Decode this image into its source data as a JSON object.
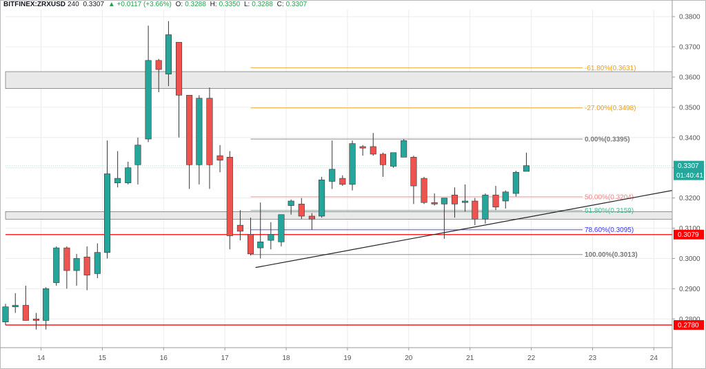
{
  "header": {
    "symbol": "BITFINEX:ZRXUSD",
    "interval": "240",
    "last": "0.3307",
    "change": "▲ +0.0117 (+3.66%)",
    "o_label": "O:",
    "o": "0.3288",
    "h_label": "H:",
    "h": "0.3350",
    "l_label": "L:",
    "l": "0.3288",
    "c_label": "C:",
    "c": "0.3307"
  },
  "colors": {
    "up": "#26a69a",
    "down": "#ef5350",
    "grid": "#ececec",
    "axis": "#555555",
    "resistance": "#ff0000",
    "zone": "#e9e9e9",
    "fib_orange": "#f39c12",
    "fib_gray": "#777777",
    "fib_red": "#f08080",
    "fib_green": "#3db88a",
    "fib_blue": "#3333ff",
    "trend": "#222222",
    "price_tag": "#26a69a"
  },
  "chart_data": {
    "type": "candlestick",
    "title": "BITFINEX:ZRXUSD, 240",
    "ylim": [
      0.2705,
      0.3823
    ],
    "xlim": [
      13.42,
      24.3
    ],
    "x_ticks": [
      14,
      15,
      16,
      17,
      18,
      19,
      20,
      21,
      22,
      23,
      24
    ],
    "x_tick_labels": [
      "14",
      "15",
      "16",
      "17",
      "18",
      "19",
      "20",
      "21",
      "22",
      "23",
      "24"
    ],
    "y_ticks": [
      0.38,
      0.37,
      0.36,
      0.35,
      0.34,
      0.33,
      0.32,
      0.31,
      0.3,
      0.29,
      0.28
    ],
    "y_tick_labels": [
      "0.3800",
      "0.3700",
      "0.3600",
      "0.3500",
      "0.3400",
      "0.3300",
      "0.3200",
      "0.3100",
      "0.3000",
      "0.2900",
      "0.2800"
    ],
    "candles": [
      {
        "t": 13.42,
        "o": 0.279,
        "h": 0.285,
        "l": 0.278,
        "c": 0.284
      },
      {
        "t": 13.58,
        "o": 0.284,
        "h": 0.2885,
        "l": 0.282,
        "c": 0.2845
      },
      {
        "t": 13.75,
        "o": 0.2845,
        "h": 0.291,
        "l": 0.2795,
        "c": 0.2795
      },
      {
        "t": 13.92,
        "o": 0.28,
        "h": 0.282,
        "l": 0.2765,
        "c": 0.2795
      },
      {
        "t": 14.08,
        "o": 0.2795,
        "h": 0.2905,
        "l": 0.2765,
        "c": 0.29
      },
      {
        "t": 14.25,
        "o": 0.292,
        "h": 0.304,
        "l": 0.291,
        "c": 0.3035
      },
      {
        "t": 14.42,
        "o": 0.3035,
        "h": 0.304,
        "l": 0.29,
        "c": 0.296
      },
      {
        "t": 14.58,
        "o": 0.296,
        "h": 0.3015,
        "l": 0.291,
        "c": 0.3
      },
      {
        "t": 14.75,
        "o": 0.3005,
        "h": 0.304,
        "l": 0.2895,
        "c": 0.2945
      },
      {
        "t": 14.92,
        "o": 0.295,
        "h": 0.305,
        "l": 0.2935,
        "c": 0.302
      },
      {
        "t": 15.08,
        "o": 0.302,
        "h": 0.339,
        "l": 0.3,
        "c": 0.328
      },
      {
        "t": 15.25,
        "o": 0.325,
        "h": 0.3355,
        "l": 0.3235,
        "c": 0.3265
      },
      {
        "t": 15.42,
        "o": 0.325,
        "h": 0.332,
        "l": 0.3245,
        "c": 0.33
      },
      {
        "t": 15.58,
        "o": 0.331,
        "h": 0.34,
        "l": 0.3245,
        "c": 0.3375
      },
      {
        "t": 15.75,
        "o": 0.3395,
        "h": 0.377,
        "l": 0.3385,
        "c": 0.3655
      },
      {
        "t": 15.92,
        "o": 0.3655,
        "h": 0.366,
        "l": 0.355,
        "c": 0.3625
      },
      {
        "t": 16.08,
        "o": 0.361,
        "h": 0.3785,
        "l": 0.357,
        "c": 0.374
      },
      {
        "t": 16.25,
        "o": 0.3715,
        "h": 0.3715,
        "l": 0.34,
        "c": 0.354
      },
      {
        "t": 16.42,
        "o": 0.354,
        "h": 0.354,
        "l": 0.323,
        "c": 0.331
      },
      {
        "t": 16.58,
        "o": 0.331,
        "h": 0.354,
        "l": 0.3245,
        "c": 0.353
      },
      {
        "t": 16.75,
        "o": 0.353,
        "h": 0.3565,
        "l": 0.323,
        "c": 0.331
      },
      {
        "t": 16.92,
        "o": 0.334,
        "h": 0.3375,
        "l": 0.3285,
        "c": 0.3325
      },
      {
        "t": 17.08,
        "o": 0.3335,
        "h": 0.3355,
        "l": 0.303,
        "c": 0.3075
      },
      {
        "t": 17.25,
        "o": 0.311,
        "h": 0.316,
        "l": 0.306,
        "c": 0.309
      },
      {
        "t": 17.42,
        "o": 0.308,
        "h": 0.3135,
        "l": 0.301,
        "c": 0.3015
      },
      {
        "t": 17.58,
        "o": 0.3035,
        "h": 0.3185,
        "l": 0.3,
        "c": 0.3055
      },
      {
        "t": 17.75,
        "o": 0.306,
        "h": 0.312,
        "l": 0.303,
        "c": 0.308
      },
      {
        "t": 17.92,
        "o": 0.3055,
        "h": 0.3145,
        "l": 0.304,
        "c": 0.3145
      },
      {
        "t": 18.08,
        "o": 0.3175,
        "h": 0.3195,
        "l": 0.3145,
        "c": 0.319
      },
      {
        "t": 18.25,
        "o": 0.318,
        "h": 0.32,
        "l": 0.313,
        "c": 0.314
      },
      {
        "t": 18.42,
        "o": 0.314,
        "h": 0.315,
        "l": 0.3095,
        "c": 0.313
      },
      {
        "t": 18.58,
        "o": 0.314,
        "h": 0.327,
        "l": 0.3135,
        "c": 0.326
      },
      {
        "t": 18.75,
        "o": 0.3255,
        "h": 0.339,
        "l": 0.323,
        "c": 0.3295
      },
      {
        "t": 18.92,
        "o": 0.3265,
        "h": 0.3275,
        "l": 0.324,
        "c": 0.3245
      },
      {
        "t": 19.08,
        "o": 0.3245,
        "h": 0.339,
        "l": 0.3225,
        "c": 0.338
      },
      {
        "t": 19.25,
        "o": 0.337,
        "h": 0.3375,
        "l": 0.334,
        "c": 0.3365
      },
      {
        "t": 19.42,
        "o": 0.337,
        "h": 0.3415,
        "l": 0.334,
        "c": 0.3345
      },
      {
        "t": 19.58,
        "o": 0.3345,
        "h": 0.335,
        "l": 0.327,
        "c": 0.331
      },
      {
        "t": 19.75,
        "o": 0.3305,
        "h": 0.335,
        "l": 0.33,
        "c": 0.335
      },
      {
        "t": 19.92,
        "o": 0.3335,
        "h": 0.3395,
        "l": 0.3335,
        "c": 0.339
      },
      {
        "t": 20.08,
        "o": 0.3335,
        "h": 0.334,
        "l": 0.318,
        "c": 0.324
      },
      {
        "t": 20.25,
        "o": 0.3265,
        "h": 0.327,
        "l": 0.318,
        "c": 0.3185
      },
      {
        "t": 20.42,
        "o": 0.3185,
        "h": 0.3215,
        "l": 0.3175,
        "c": 0.318
      },
      {
        "t": 20.58,
        "o": 0.318,
        "h": 0.32,
        "l": 0.3065,
        "c": 0.32
      },
      {
        "t": 20.75,
        "o": 0.321,
        "h": 0.3235,
        "l": 0.3135,
        "c": 0.318
      },
      {
        "t": 20.92,
        "o": 0.3185,
        "h": 0.3245,
        "l": 0.3155,
        "c": 0.319
      },
      {
        "t": 21.08,
        "o": 0.319,
        "h": 0.32,
        "l": 0.311,
        "c": 0.313
      },
      {
        "t": 21.25,
        "o": 0.313,
        "h": 0.3215,
        "l": 0.3115,
        "c": 0.321
      },
      {
        "t": 21.42,
        "o": 0.321,
        "h": 0.324,
        "l": 0.316,
        "c": 0.317
      },
      {
        "t": 21.58,
        "o": 0.319,
        "h": 0.3225,
        "l": 0.3165,
        "c": 0.322
      },
      {
        "t": 21.75,
        "o": 0.3215,
        "h": 0.329,
        "l": 0.3205,
        "c": 0.3285
      },
      {
        "t": 21.92,
        "o": 0.3288,
        "h": 0.335,
        "l": 0.3288,
        "c": 0.3307
      }
    ],
    "horizontal_lines": [
      {
        "value": 0.3079,
        "label": "0.3079"
      },
      {
        "value": 0.278,
        "label": "0.2780"
      }
    ],
    "zones": [
      {
        "from": 0.3562,
        "to": 0.3618
      },
      {
        "from": 0.313,
        "to": 0.3155
      }
    ],
    "trendline": {
      "from": {
        "t": 17.5,
        "v": 0.297
      },
      "to": {
        "t": 24.3,
        "v": 0.3225
      }
    },
    "fibonacci": {
      "from_t": 17.42,
      "levels": [
        {
          "label": "-61.80%(0.3631)",
          "value": 0.3631,
          "color": "fib_orange"
        },
        {
          "label": "-27.00%(0.3498)",
          "value": 0.3498,
          "color": "fib_orange"
        },
        {
          "label": "0.00%(0.3395)",
          "value": 0.3395,
          "color": "fib_gray"
        },
        {
          "label": "50.00%(0.3204)",
          "value": 0.3204,
          "color": "fib_red"
        },
        {
          "label": "61.80%(0.3159)",
          "value": 0.3159,
          "color": "fib_green"
        },
        {
          "label": "78.60%(0.3095)",
          "value": 0.3095,
          "color": "fib_blue"
        },
        {
          "label": "100.00%(0.3013)",
          "value": 0.3013,
          "color": "fib_gray"
        }
      ]
    },
    "price_tag": {
      "price": "0.3307",
      "value": 0.3307,
      "countdown": "01:40:41"
    }
  }
}
